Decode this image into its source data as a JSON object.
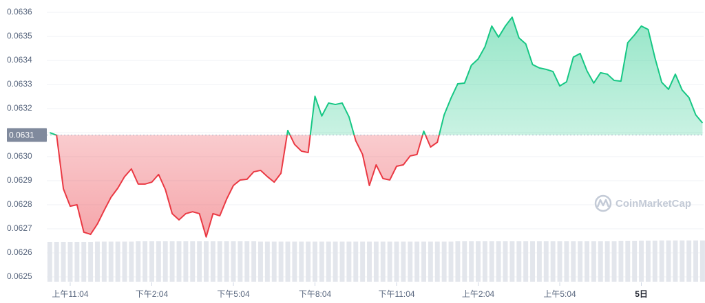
{
  "chart_data": {
    "type": "line",
    "x": [
      -0.75,
      -0.5,
      -0.25,
      0,
      0.25,
      0.5,
      0.75,
      1,
      1.25,
      1.5,
      1.75,
      2,
      2.25,
      2.5,
      2.75,
      3,
      3.25,
      3.5,
      3.75,
      4,
      4.25,
      4.5,
      4.75,
      5,
      5.25,
      5.5,
      5.75,
      6,
      6.25,
      6.5,
      6.75,
      7,
      7.25,
      7.5,
      7.75,
      8,
      8.25,
      8.5,
      8.75,
      9,
      9.25,
      9.5,
      9.75,
      10,
      10.25,
      10.5,
      10.75,
      11,
      11.25,
      11.5,
      11.75,
      12,
      12.25,
      12.5,
      12.75,
      13,
      13.25,
      13.5,
      13.75,
      14,
      14.25,
      14.5,
      14.75,
      15,
      15.25,
      15.5,
      15.75,
      16,
      16.25,
      16.5,
      16.75,
      17,
      17.25,
      17.5,
      17.75,
      18,
      18.25,
      18.5,
      18.75,
      19,
      19.25,
      19.5,
      19.75,
      20,
      20.25,
      20.5,
      20.75,
      21,
      21.25,
      21.5,
      21.75,
      22,
      22.25,
      22.5,
      22.75,
      23,
      23.25
    ],
    "series": [
      {
        "values": [
          0.0631,
          0.063089,
          0.062866,
          0.062794,
          0.0628,
          0.062686,
          0.062677,
          0.06272,
          0.062777,
          0.062831,
          0.062869,
          0.062917,
          0.062949,
          0.062886,
          0.062886,
          0.062894,
          0.062926,
          0.062863,
          0.062763,
          0.062737,
          0.062763,
          0.062771,
          0.062763,
          0.062666,
          0.062763,
          0.062754,
          0.062823,
          0.06288,
          0.062903,
          0.062906,
          0.062937,
          0.062943,
          0.062917,
          0.062894,
          0.062931,
          0.063109,
          0.063051,
          0.063023,
          0.063017,
          0.063251,
          0.063169,
          0.063223,
          0.063217,
          0.063223,
          0.063166,
          0.063066,
          0.063009,
          0.06288,
          0.062966,
          0.062909,
          0.062903,
          0.06296,
          0.062966,
          0.063003,
          0.063009,
          0.063106,
          0.06304,
          0.06306,
          0.063174,
          0.063243,
          0.063303,
          0.063306,
          0.06338,
          0.063406,
          0.063457,
          0.063543,
          0.063497,
          0.063543,
          0.06358,
          0.063494,
          0.063469,
          0.063383,
          0.063369,
          0.063363,
          0.063354,
          0.063294,
          0.063311,
          0.063414,
          0.063429,
          0.063357,
          0.063306,
          0.063349,
          0.063343,
          0.063317,
          0.063314,
          0.063474,
          0.063506,
          0.063543,
          0.063529,
          0.063411,
          0.063309,
          0.06328,
          0.063343,
          0.063277,
          0.063246,
          0.063174,
          0.06314
        ],
        "color_up": "#16c784",
        "color_down": "#ea3943"
      },
      {
        "type": "bar",
        "axis": "y2",
        "color": "#e3e6ec",
        "values": [
          14.8,
          14.8,
          14.8,
          14.8,
          14.8,
          14.8,
          14.8,
          14.9,
          14.9,
          14.9,
          14.9,
          14.9,
          14.9,
          15.0,
          15.0,
          15.0,
          15.0,
          15.0,
          15.0,
          15.0,
          15.0,
          15.0,
          15.0,
          15.0,
          15.0,
          15.0,
          15.0,
          15.0,
          15.0,
          15.0,
          15.0,
          14.9,
          14.9,
          14.9,
          14.9,
          14.9,
          14.9,
          14.9,
          14.9,
          14.9,
          14.9,
          14.9,
          14.9,
          14.9,
          14.9,
          14.9,
          14.9,
          14.9,
          14.9,
          14.9,
          14.9,
          14.9,
          14.9,
          14.9,
          14.9,
          14.9,
          14.9,
          14.9,
          14.9,
          14.9,
          15.0,
          15.0,
          15.0,
          15.0,
          15.0,
          15.0,
          15.0,
          15.0,
          15.0,
          15.0,
          15.0,
          15.0,
          15.0,
          15.0,
          15.0,
          15.0,
          15.0,
          15.0,
          15.0,
          15.0,
          15.0,
          15.0,
          15.0,
          15.0,
          15.1,
          15.1,
          15.1,
          15.2,
          15.2,
          15.2,
          15.3,
          15.3,
          15.3,
          15.3,
          15.3,
          15.3,
          15.3
        ]
      }
    ],
    "reference": {
      "value": 0.06309,
      "label": "0.0631"
    },
    "xlim": [
      -0.86,
      23.29
    ],
    "xticks": [
      {
        "value": 0,
        "label": "上午11:04"
      },
      {
        "value": 3,
        "label": "下午2:04"
      },
      {
        "value": 6,
        "label": "下午5:04"
      },
      {
        "value": 9,
        "label": "下午8:04"
      },
      {
        "value": 12,
        "label": "下午11:04"
      },
      {
        "value": 15,
        "label": "上午2:04"
      },
      {
        "value": 18,
        "label": "上午5:04"
      },
      {
        "value": 21,
        "label": "5日"
      }
    ],
    "ylim": [
      0.06245,
      0.06365
    ],
    "yticks": [
      0.0625,
      0.0626,
      0.0627,
      0.0628,
      0.0629,
      {
        "value": 0.063,
        "label": "0.0630"
      },
      0.0631,
      0.0632,
      0.0633,
      0.0634,
      0.0635,
      0.0636
    ],
    "y2lim": [
      0,
      100
    ],
    "grid": true,
    "watermark": "CoinMarketCap"
  }
}
